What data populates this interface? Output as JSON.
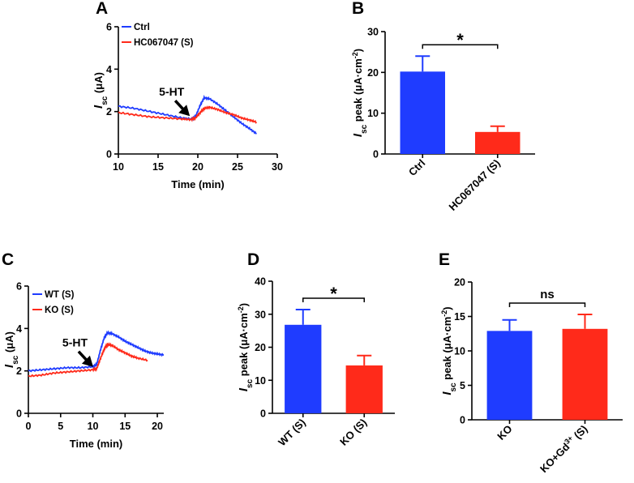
{
  "chart_data": [
    {
      "id": "A",
      "letter": "A",
      "type": "line",
      "xlabel": "Time (min)",
      "ylabel_main": "I",
      "ylabel_sub": "sc",
      "ylabel_rest": " (μA)",
      "xlim": [
        10,
        30
      ],
      "ylim": [
        0,
        6
      ],
      "xticks": [
        10,
        15,
        20,
        25,
        30
      ],
      "yticks": [
        0,
        2,
        4,
        6
      ],
      "legend": "top-left",
      "annotation": {
        "text": "5-HT",
        "x": 19.2,
        "y": 1.75
      },
      "series": [
        {
          "name": "Ctrl",
          "color": "#1f3cff",
          "x": [
            10,
            12,
            14,
            16,
            18,
            19.2,
            19.7,
            20.3,
            20.8,
            21.5,
            22.5,
            23.5,
            24.5,
            25.5,
            26.5,
            27.4
          ],
          "y": [
            2.25,
            2.15,
            2.0,
            1.85,
            1.7,
            1.65,
            1.75,
            2.3,
            2.65,
            2.6,
            2.35,
            2.05,
            1.75,
            1.45,
            1.2,
            0.95
          ]
        },
        {
          "name": "HC067047 (S)",
          "color": "#ff2a1a",
          "x": [
            10,
            12,
            14,
            16,
            18,
            19.2,
            19.7,
            20.3,
            20.8,
            21.5,
            22.5,
            23.5,
            24.5,
            25.5,
            26.5,
            27.4
          ],
          "y": [
            1.95,
            1.85,
            1.75,
            1.7,
            1.65,
            1.62,
            1.7,
            1.95,
            2.15,
            2.2,
            2.1,
            1.95,
            1.85,
            1.7,
            1.6,
            1.5
          ]
        }
      ]
    },
    {
      "id": "B",
      "letter": "B",
      "type": "bar",
      "categories": [
        "Ctrl",
        "HC067047 (S)"
      ],
      "values": [
        20.2,
        5.4
      ],
      "errors": [
        3.8,
        1.4
      ],
      "colors": [
        "#1f3cff",
        "#ff2a1a"
      ],
      "ylim": [
        0,
        30
      ],
      "yticks": [
        0,
        10,
        20,
        30
      ],
      "ylabel_main": "I",
      "ylabel_sub": "sc",
      "ylabel_rest": " peak (μA·cm",
      "ylabel_sup": "-2",
      "ylabel_end": ")",
      "significance": "*"
    },
    {
      "id": "C",
      "letter": "C",
      "type": "line",
      "xlabel": "Time (min)",
      "ylabel_main": "I",
      "ylabel_sub": "sc",
      "ylabel_rest": " (μA)",
      "xlim": [
        0,
        21
      ],
      "ylim": [
        0,
        6
      ],
      "xticks": [
        0,
        5,
        10,
        15,
        20
      ],
      "yticks": [
        0,
        2,
        4,
        6
      ],
      "legend": "top-left",
      "annotation": {
        "text": "5-HT",
        "x": 10.3,
        "y": 2.15
      },
      "series": [
        {
          "name": "WT (S)",
          "color": "#1f3cff",
          "x": [
            0,
            2,
            4,
            6,
            8,
            10,
            10.6,
            11.2,
            11.8,
            12.3,
            13,
            14,
            15,
            16,
            17,
            18,
            19,
            20,
            21
          ],
          "y": [
            2.0,
            2.05,
            2.1,
            2.15,
            2.15,
            2.2,
            2.3,
            3.0,
            3.6,
            3.8,
            3.75,
            3.6,
            3.4,
            3.25,
            3.1,
            2.95,
            2.85,
            2.8,
            2.75
          ]
        },
        {
          "name": "KO (S)",
          "color": "#ff2a1a",
          "x": [
            0,
            2,
            4,
            6,
            8,
            10,
            10.6,
            11.2,
            11.8,
            12.3,
            13,
            14,
            15,
            16,
            17,
            18.5
          ],
          "y": [
            1.75,
            1.8,
            1.9,
            1.95,
            2.0,
            2.05,
            2.1,
            2.6,
            3.05,
            3.25,
            3.2,
            3.0,
            2.85,
            2.7,
            2.6,
            2.5
          ]
        }
      ]
    },
    {
      "id": "D",
      "letter": "D",
      "type": "bar",
      "categories": [
        "WT (S)",
        "KO (S)"
      ],
      "values": [
        26.8,
        14.5
      ],
      "errors": [
        4.6,
        3.0
      ],
      "colors": [
        "#1f3cff",
        "#ff2a1a"
      ],
      "ylim": [
        0,
        40
      ],
      "yticks": [
        0,
        10,
        20,
        30,
        40
      ],
      "ylabel_main": "I",
      "ylabel_sub": "sc",
      "ylabel_rest": " peak  (μA·cm",
      "ylabel_sup": "-2",
      "ylabel_end": ")",
      "significance": "*"
    },
    {
      "id": "E",
      "letter": "E",
      "type": "bar",
      "categories": [
        "KO",
        "KO+Gd3+ (S)"
      ],
      "category_parts": [
        {
          "main": "KO",
          "sup": "",
          "rest": ""
        },
        {
          "main": "KO+Gd",
          "sup": "3+",
          "rest": " (S)"
        }
      ],
      "values": [
        12.9,
        13.2
      ],
      "errors": [
        1.6,
        2.1
      ],
      "colors": [
        "#1f3cff",
        "#ff2a1a"
      ],
      "ylim": [
        0,
        20
      ],
      "yticks": [
        0,
        5,
        10,
        15,
        20
      ],
      "ylabel_main": "I",
      "ylabel_sub": "sc",
      "ylabel_rest": " peak (μA·cm",
      "ylabel_sup": "-2",
      "ylabel_end": ")",
      "significance": "ns"
    }
  ]
}
